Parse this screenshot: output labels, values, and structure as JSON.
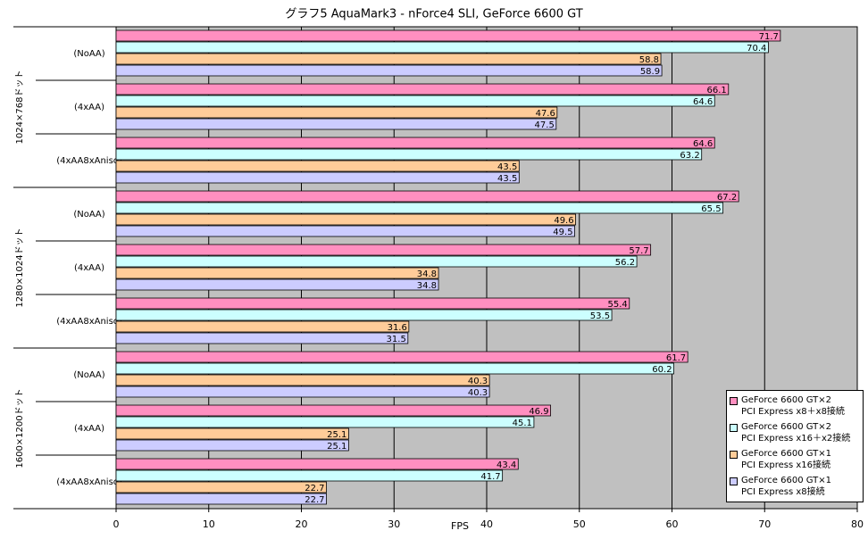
{
  "chart_data": {
    "type": "hbar",
    "title": "グラフ5  AquaMark3 - nForce4 SLI, GeForce 6600 GT",
    "x_label": "FPS",
    "category_groups": [
      "1024×768ドット",
      "1280×1024ドット",
      "1600×1200ドット"
    ],
    "categories": [
      "(NoAA)",
      "(4xAA)",
      "(4xAA8xAniso)",
      "(NoAA)",
      "(4xAA)",
      "(4xAA8xAniso)",
      "(NoAA)",
      "(4xAA)",
      "(4xAA8xAniso)"
    ],
    "series": [
      {
        "name": "GeForce 6600 GT×2\nPCI Express x8＋x8接続",
        "color": "#ff8fc0",
        "values": [
          71.7,
          66.1,
          64.6,
          67.2,
          57.7,
          55.4,
          61.7,
          46.9,
          43.4
        ]
      },
      {
        "name": "GeForce 6600 GT×2\nPCI Express x16＋x2接続",
        "color": "#ccffff",
        "values": [
          70.4,
          64.6,
          63.2,
          65.5,
          56.2,
          53.5,
          60.2,
          45.1,
          41.7
        ]
      },
      {
        "name": "GeForce 6600 GT×1\nPCI Express x16接続",
        "color": "#ffcc99",
        "values": [
          58.8,
          47.6,
          43.5,
          49.6,
          34.8,
          31.6,
          40.3,
          25.1,
          22.7
        ]
      },
      {
        "name": "GeForce 6600 GT×1\nPCI Express x8接続",
        "color": "#ccccff",
        "values": [
          58.9,
          47.5,
          43.5,
          49.5,
          34.8,
          31.5,
          40.3,
          25.1,
          22.7
        ]
      }
    ],
    "xlim": [
      0,
      80
    ],
    "xticks": [
      0,
      10,
      20,
      30,
      40,
      50,
      60,
      70,
      80
    ],
    "grid": true,
    "plot_background": "#c0c0c0",
    "legend": "lower right"
  }
}
